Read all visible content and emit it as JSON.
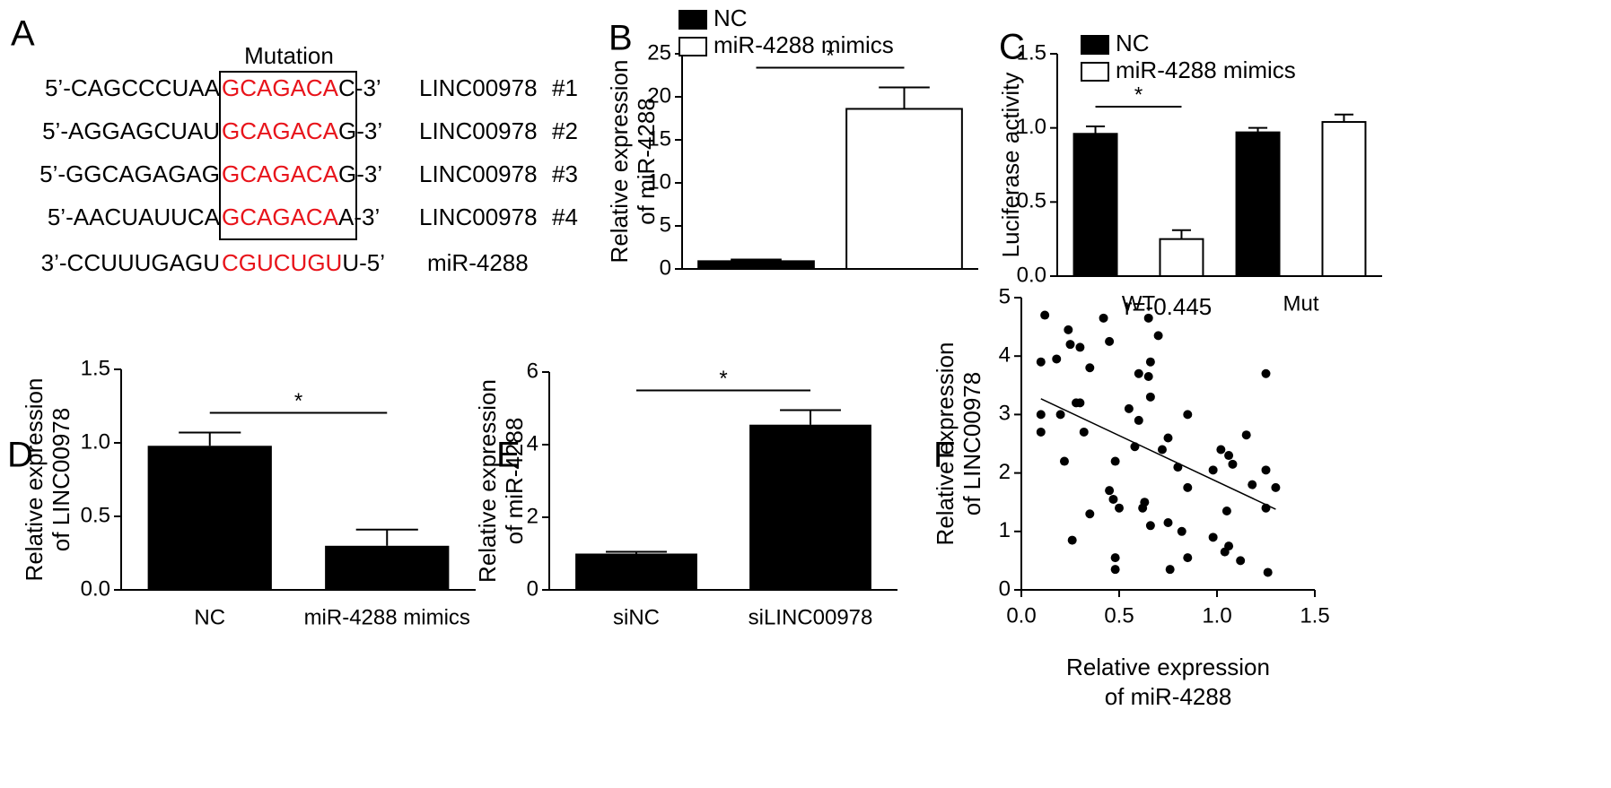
{
  "panel_a": {
    "label": "A",
    "title": "Mutation",
    "rows": [
      {
        "left": "5’-CAGCCCUAA",
        "site": "GCAGACA",
        "right": "C-3’",
        "name": "LINC00978",
        "number": "#1"
      },
      {
        "left": "5’-AGGAGCUAU",
        "site": "GCAGACA",
        "right": "G-3’",
        "name": "LINC00978",
        "number": "#2"
      },
      {
        "left": "5’-GGCAGAGAG",
        "site": "GCAGACA",
        "right": "G-3’",
        "name": "LINC00978",
        "number": "#3"
      },
      {
        "left": "5’-AACUAUUCA",
        "site": "GCAGACA",
        "right": "A-3’",
        "name": "LINC00978",
        "number": "#4"
      },
      {
        "left": "3’-CCUUUGAGU",
        "site": "CGUCUGU",
        "right": "U-5’",
        "name": "miR-4288"
      }
    ]
  },
  "chart_data": [
    {
      "panel": "B",
      "type": "bar",
      "ylabel": [
        "Relative expression",
        "of miR-4288"
      ],
      "series": [
        {
          "name": "NC",
          "color": "#000000",
          "values": [
            0.9
          ],
          "errors": [
            0.2
          ]
        },
        {
          "name": "miR-4288 mimics",
          "color": "#ffffff",
          "values": [
            18.6
          ],
          "errors": [
            2.5
          ]
        }
      ],
      "ylim": [
        0,
        25
      ],
      "yticks": [
        0,
        5,
        10,
        15,
        20,
        25
      ],
      "significance": "*"
    },
    {
      "panel": "C",
      "type": "bar",
      "ylabel": [
        "Luciferase activity"
      ],
      "categories": [
        "WT",
        "Mut"
      ],
      "series": [
        {
          "name": "NC",
          "color": "#000000",
          "values": [
            0.96,
            0.97
          ],
          "errors": [
            0.05,
            0.03
          ]
        },
        {
          "name": "miR-4288 mimics",
          "color": "#ffffff",
          "values": [
            0.25,
            1.04
          ],
          "errors": [
            0.06,
            0.05
          ]
        }
      ],
      "ylim": [
        0,
        1.5
      ],
      "yticks": [
        {
          "value": 0,
          "label": "0.0"
        },
        0.5,
        {
          "value": 1,
          "label": "1.0"
        },
        1.5
      ],
      "significance": "*"
    },
    {
      "panel": "D",
      "type": "bar",
      "ylabel": [
        "Relative expression",
        "of LINC00978"
      ],
      "categories": [
        "NC",
        "miR-4288 mimics"
      ],
      "values": [
        0.98,
        0.3
      ],
      "errors": [
        0.09,
        0.11
      ],
      "color": "#000000",
      "ylim": [
        0,
        1.5
      ],
      "yticks": [
        {
          "value": 0,
          "label": "0.0"
        },
        0.5,
        {
          "value": 1,
          "label": "1.0"
        },
        1.5
      ],
      "significance": "*"
    },
    {
      "panel": "E",
      "type": "bar",
      "ylabel": [
        "Relative expression",
        "of miR-4288"
      ],
      "categories": [
        "siNC",
        "siLINC00978"
      ],
      "values": [
        1,
        4.55
      ],
      "errors": [
        0.05,
        0.4
      ],
      "color": "#000000",
      "ylim": [
        0,
        6
      ],
      "yticks": [
        0,
        2,
        4,
        6
      ],
      "significance": "*"
    },
    {
      "panel": "F",
      "type": "scatter",
      "ylabel": [
        "Relative expression",
        "of LINC00978"
      ],
      "xlabel": [
        "Relative expression",
        "of miR-4288"
      ],
      "annotation": "r=-0.445",
      "color": "#000000",
      "x": [
        0.12,
        0.1,
        0.1,
        0.1,
        0.18,
        0.2,
        0.22,
        0.24,
        0.25,
        0.26,
        0.28,
        0.3,
        0.3,
        0.32,
        0.35,
        0.35,
        0.42,
        0.45,
        0.45,
        0.47,
        0.48,
        0.48,
        0.48,
        0.5,
        0.55,
        0.58,
        0.6,
        0.6,
        0.62,
        0.63,
        0.65,
        0.65,
        0.66,
        0.66,
        0.66,
        0.7,
        0.72,
        0.75,
        0.75,
        0.76,
        0.8,
        0.82,
        0.85,
        0.85,
        0.85,
        0.98,
        0.98,
        1.02,
        1.04,
        1.05,
        1.06,
        1.06,
        1.08,
        1.12,
        1.15,
        1.18,
        1.25,
        1.25,
        1.25,
        1.26,
        1.3
      ],
      "y": [
        4.7,
        3.9,
        3.0,
        2.7,
        3.95,
        3.0,
        2.2,
        4.45,
        4.2,
        0.85,
        3.2,
        4.15,
        3.2,
        2.7,
        3.8,
        1.3,
        4.65,
        4.25,
        1.7,
        1.55,
        2.2,
        0.55,
        0.35,
        1.4,
        3.1,
        2.45,
        3.7,
        2.9,
        1.4,
        1.5,
        4.65,
        3.65,
        3.9,
        3.3,
        1.1,
        4.35,
        2.4,
        2.6,
        1.15,
        0.35,
        2.1,
        1.0,
        3.0,
        1.75,
        0.55,
        2.05,
        0.9,
        2.4,
        0.65,
        1.35,
        2.3,
        0.75,
        2.15,
        0.5,
        2.65,
        1.8,
        3.7,
        2.05,
        1.4,
        0.3,
        1.75
      ],
      "trendline": {
        "x": [
          0.1,
          1.3
        ],
        "y": [
          3.27,
          1.38
        ]
      },
      "xlim": [
        0,
        1.5
      ],
      "xticks": [
        {
          "value": 0,
          "label": "0.0"
        },
        0.5,
        {
          "value": 1,
          "label": "1.0"
        },
        1.5
      ],
      "ylim": [
        0,
        5
      ],
      "yticks": [
        0,
        1,
        2,
        3,
        4,
        5
      ]
    }
  ]
}
